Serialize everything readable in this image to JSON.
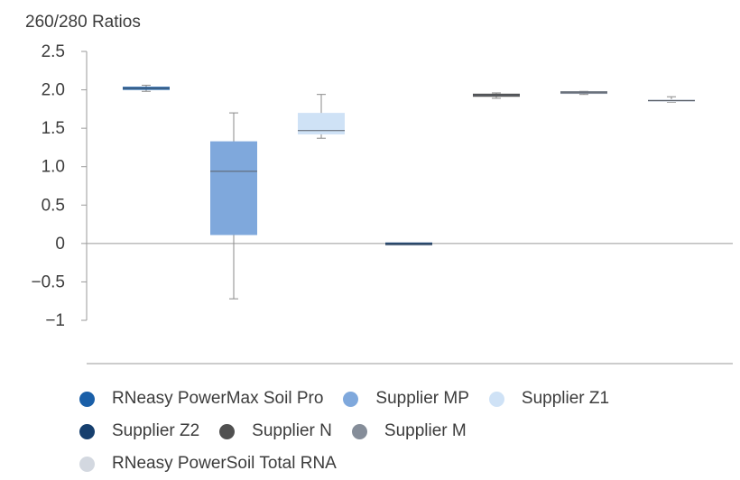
{
  "chart_data": {
    "type": "box",
    "title": "260/280 Ratios",
    "xlabel": "",
    "ylabel": "",
    "ylim": [
      -1,
      2.5
    ],
    "y_ticks": [
      {
        "value": 2.5,
        "label": "2.5"
      },
      {
        "value": 2.0,
        "label": "2.0"
      },
      {
        "value": 1.5,
        "label": "1.5"
      },
      {
        "value": 1.0,
        "label": "1.0"
      },
      {
        "value": 0.5,
        "label": "0.5"
      },
      {
        "value": 0,
        "label": "0"
      },
      {
        "value": -0.5,
        "label": "−0.5"
      },
      {
        "value": -1,
        "label": "−1"
      }
    ],
    "grid": false,
    "legend_position": "bottom",
    "series": [
      {
        "name": "RNeasy PowerMax Soil Pro",
        "color": "#1a5fa8",
        "min": 1.98,
        "q1": 2.0,
        "median": 2.02,
        "q3": 2.04,
        "max": 2.06
      },
      {
        "name": "Supplier MP",
        "color": "#7fa8dc",
        "min": -0.72,
        "q1": 0.11,
        "median": 0.94,
        "q3": 1.33,
        "max": 1.7
      },
      {
        "name": "Supplier Z1",
        "color": "#cfe2f6",
        "min": 1.37,
        "q1": 1.42,
        "median": 1.47,
        "q3": 1.7,
        "max": 1.94
      },
      {
        "name": "Supplier Z2",
        "color": "#163f6e",
        "min": -0.01,
        "q1": -0.01,
        "median": -0.01,
        "q3": 0.0,
        "max": 0.0
      },
      {
        "name": "Supplier N",
        "color": "#505050",
        "min": 1.89,
        "q1": 1.91,
        "median": 1.93,
        "q3": 1.95,
        "max": 1.96
      },
      {
        "name": "Supplier M",
        "color": "#858d99",
        "min": 1.94,
        "q1": 1.96,
        "median": 1.97,
        "q3": 1.97,
        "max": 1.98
      },
      {
        "name": "RNeasy PowerSoil Total RNA",
        "color": "#d3d8e0",
        "min": 1.84,
        "q1": 1.85,
        "median": 1.86,
        "q3": 1.87,
        "max": 1.91
      }
    ]
  }
}
